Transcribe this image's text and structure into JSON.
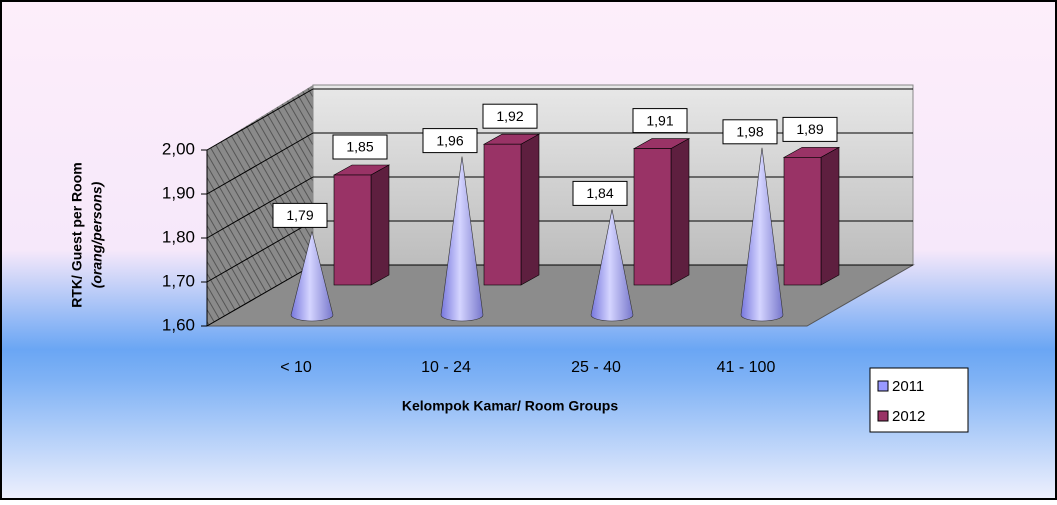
{
  "chart_data": {
    "type": "bar3d",
    "y_label": [
      "RTK/ Guest per Room",
      "(orang/persons)"
    ],
    "x_label": "Kelompok Kamar/ Room Groups",
    "categories": [
      "< 10",
      "10 - 24",
      "25 - 40",
      "41 - 100"
    ],
    "series": [
      {
        "name": "2011",
        "color": "#9999ff",
        "shape": "cone",
        "values": [
          1.79,
          1.96,
          1.84,
          1.98
        ],
        "value_labels": [
          "1,79",
          "1,96",
          "1,84",
          "1,98"
        ]
      },
      {
        "name": "2012",
        "color": "#993366",
        "shape": "box",
        "values": [
          1.85,
          1.92,
          1.91,
          1.89
        ],
        "value_labels": [
          "1,85",
          "1,92",
          "1,91",
          "1,89"
        ]
      }
    ],
    "ylim": [
      1.6,
      2.0
    ],
    "yticks": [
      {
        "value": 1.6,
        "label": "1,60"
      },
      {
        "value": 1.7,
        "label": "1,70"
      },
      {
        "value": 1.8,
        "label": "1,80"
      },
      {
        "value": 1.9,
        "label": "1,90"
      },
      {
        "value": 2.0,
        "label": "2,00"
      }
    ],
    "grid": true,
    "legend": "right"
  }
}
